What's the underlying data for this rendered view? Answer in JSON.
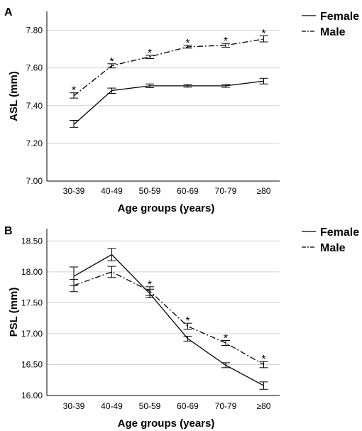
{
  "chart_data": [
    {
      "panel_label": "A",
      "type": "line",
      "xlabel": "Age groups (years)",
      "ylabel": "ASL (mm)",
      "categories": [
        "30-39",
        "40-49",
        "50-59",
        "60-69",
        "70-79",
        "≥80"
      ],
      "ylim": [
        7.0,
        7.9
      ],
      "yticks": [
        7.0,
        7.2,
        7.4,
        7.6,
        7.8
      ],
      "ytick_labels": [
        "7.00",
        "7.20",
        "7.40",
        "7.60",
        "7.80"
      ],
      "grid": true,
      "legend": "top-right",
      "series": [
        {
          "name": "Female",
          "line_style": "solid",
          "values": [
            7.3,
            7.48,
            7.505,
            7.505,
            7.505,
            7.53
          ],
          "error_low": [
            7.285,
            7.465,
            7.495,
            7.498,
            7.497,
            7.515
          ],
          "error_high": [
            7.322,
            7.493,
            7.515,
            7.512,
            7.513,
            7.545
          ]
        },
        {
          "name": "Male",
          "line_style": "dash-dot",
          "values": [
            7.452,
            7.612,
            7.659,
            7.712,
            7.72,
            7.753
          ],
          "error_low": [
            7.44,
            7.6,
            7.65,
            7.705,
            7.71,
            7.738
          ],
          "error_high": [
            7.468,
            7.622,
            7.667,
            7.72,
            7.73,
            7.77
          ]
        }
      ],
      "annotations": [
        "*",
        "*",
        "*",
        "*",
        "*",
        "*"
      ]
    },
    {
      "panel_label": "B",
      "type": "line",
      "xlabel": "Age groups (years)",
      "ylabel": "PSL (mm)",
      "categories": [
        "30-39",
        "40-49",
        "50-59",
        "60-69",
        "70-79",
        "≥80"
      ],
      "ylim": [
        16.0,
        18.7
      ],
      "yticks": [
        16.0,
        16.5,
        17.0,
        17.5,
        18.0,
        18.5
      ],
      "ytick_labels": [
        "16.00",
        "16.50",
        "17.00",
        "17.50",
        "18.00",
        "18.50"
      ],
      "grid": true,
      "legend": "top-right",
      "series": [
        {
          "name": "Female",
          "line_style": "solid",
          "values": [
            17.93,
            18.28,
            17.65,
            16.92,
            16.49,
            16.16
          ],
          "error_low": [
            17.78,
            18.18,
            17.58,
            16.88,
            16.45,
            16.1
          ],
          "error_high": [
            18.08,
            18.38,
            17.72,
            16.96,
            16.53,
            16.22
          ]
        },
        {
          "name": "Male",
          "line_style": "dash-dot",
          "values": [
            17.78,
            18.0,
            17.69,
            17.12,
            16.85,
            16.5
          ],
          "error_low": [
            17.68,
            17.91,
            17.62,
            17.07,
            16.81,
            16.45
          ],
          "error_high": [
            17.88,
            18.09,
            17.76,
            17.17,
            16.89,
            16.55
          ]
        }
      ],
      "annotations": [
        "",
        "",
        "*",
        "*",
        "*",
        "*"
      ]
    }
  ]
}
